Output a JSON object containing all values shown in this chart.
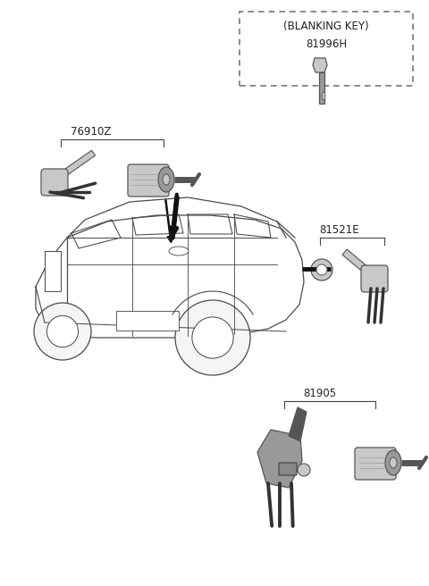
{
  "fig_width": 4.8,
  "fig_height": 6.56,
  "dpi": 100,
  "background_color": "#ffffff",
  "labels": {
    "blanking_key_box": "(BLANKING KEY)",
    "part_81996H": "81996H",
    "part_76910Z": "76910Z",
    "part_81521E": "81521E",
    "part_81905": "81905"
  },
  "colors": {
    "line": "#4a4a4a",
    "light_gray": "#c8c8c8",
    "mid_gray": "#999999",
    "dark_gray": "#555555",
    "very_dark": "#333333",
    "bracket": "#444444",
    "text": "#222222",
    "dash_box": "#777777",
    "key_dark": "#6a6a6a",
    "key_blade": "#888888"
  }
}
